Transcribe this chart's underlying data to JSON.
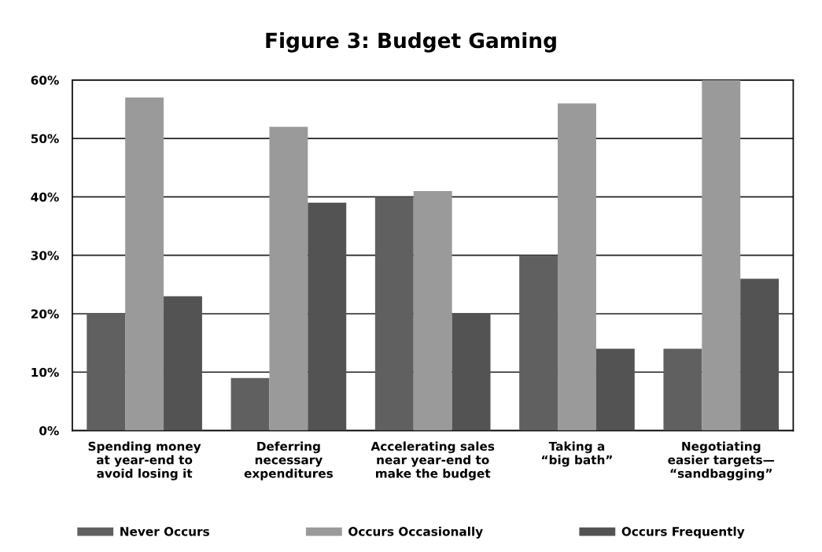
{
  "chart_data": {
    "type": "bar",
    "title": "Figure 3: Budget Gaming",
    "categories": [
      "Spending money\nat year-end to\navoid losing it",
      "Deferring\nnecessary\nexpenditures",
      "Accelerating sales\nnear year-end to\nmake the budget",
      "Taking a\n“big bath”",
      "Negotiating\neasier targets—\n“sandbagging”"
    ],
    "series": [
      {
        "name": "Never Occurs",
        "color": "#606060",
        "values": [
          20,
          9,
          40,
          30,
          14
        ]
      },
      {
        "name": "Occurs Occasionally",
        "color": "#9a9a9a",
        "values": [
          57,
          52,
          41,
          56,
          60
        ]
      },
      {
        "name": "Occurs Frequently",
        "color": "#535353",
        "values": [
          23,
          39,
          20,
          14,
          26
        ]
      }
    ],
    "ylim": [
      0,
      60
    ],
    "yticks": [
      {
        "value": 0,
        "label": "0%"
      },
      {
        "value": 10,
        "label": "10%"
      },
      {
        "value": 20,
        "label": "20%"
      },
      {
        "value": 30,
        "label": "30%"
      },
      {
        "value": 40,
        "label": "40%"
      },
      {
        "value": 50,
        "label": "50%"
      },
      {
        "value": 60,
        "label": "60%"
      }
    ],
    "grid": "y",
    "legend": "bottom"
  }
}
